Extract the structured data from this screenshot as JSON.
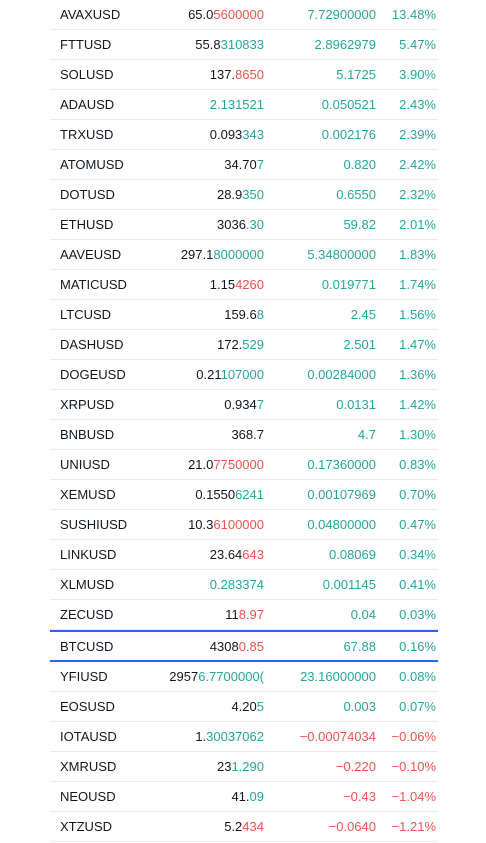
{
  "colors": {
    "up": "#26a69a",
    "down": "#ef5350",
    "text": "#131722",
    "highlight": "#2962ff"
  },
  "rows": [
    {
      "symbol": "AVAXUSD",
      "last_a": "65.0",
      "last_b": "5600000",
      "last_b_color": "down",
      "chg": "7.72900000",
      "chg_color": "up",
      "pct": "13.48%",
      "pct_color": "up"
    },
    {
      "symbol": "FTTUSD",
      "last_a": "55.8",
      "last_b": "310833",
      "last_b_color": "up",
      "chg": "2.8962979",
      "chg_color": "up",
      "pct": "5.47%",
      "pct_color": "up"
    },
    {
      "symbol": "SOLUSD",
      "last_a": "137.",
      "last_b": "8650",
      "last_b_color": "down",
      "chg": "5.1725",
      "chg_color": "up",
      "pct": "3.90%",
      "pct_color": "up"
    },
    {
      "symbol": "ADAUSD",
      "last_a": "",
      "last_b": "2.131521",
      "last_b_color": "up",
      "chg": "0.050521",
      "chg_color": "up",
      "pct": "2.43%",
      "pct_color": "up"
    },
    {
      "symbol": "TRXUSD",
      "last_a": "0.093",
      "last_b": "343",
      "last_b_color": "up",
      "chg": "0.002176",
      "chg_color": "up",
      "pct": "2.39%",
      "pct_color": "up"
    },
    {
      "symbol": "ATOMUSD",
      "last_a": "34.70",
      "last_b": "7",
      "last_b_color": "up",
      "chg": "0.820",
      "chg_color": "up",
      "pct": "2.42%",
      "pct_color": "up"
    },
    {
      "symbol": "DOTUSD",
      "last_a": "28.9",
      "last_b": "350",
      "last_b_color": "up",
      "chg": "0.6550",
      "chg_color": "up",
      "pct": "2.32%",
      "pct_color": "up"
    },
    {
      "symbol": "ETHUSD",
      "last_a": "3036",
      "last_b": ".30",
      "last_b_color": "up",
      "chg": "59.82",
      "chg_color": "up",
      "pct": "2.01%",
      "pct_color": "up"
    },
    {
      "symbol": "AAVEUSD",
      "last_a": "297.1",
      "last_b": "8000000",
      "last_b_color": "up",
      "chg": "5.34800000",
      "chg_color": "up",
      "pct": "1.83%",
      "pct_color": "up"
    },
    {
      "symbol": "MATICUSD",
      "last_a": "1.15",
      "last_b": "4260",
      "last_b_color": "down",
      "chg": "0.019771",
      "chg_color": "up",
      "pct": "1.74%",
      "pct_color": "up"
    },
    {
      "symbol": "LTCUSD",
      "last_a": "159.6",
      "last_b": "8",
      "last_b_color": "up",
      "chg": "2.45",
      "chg_color": "up",
      "pct": "1.56%",
      "pct_color": "up"
    },
    {
      "symbol": "DASHUSD",
      "last_a": "172.",
      "last_b": "529",
      "last_b_color": "up",
      "chg": "2.501",
      "chg_color": "up",
      "pct": "1.47%",
      "pct_color": "up"
    },
    {
      "symbol": "DOGEUSD",
      "last_a": "0.21",
      "last_b": "107000",
      "last_b_color": "up",
      "chg": "0.00284000",
      "chg_color": "up",
      "pct": "1.36%",
      "pct_color": "up"
    },
    {
      "symbol": "XRPUSD",
      "last_a": "0.934",
      "last_b": "7",
      "last_b_color": "up",
      "chg": "0.0131",
      "chg_color": "up",
      "pct": "1.42%",
      "pct_color": "up"
    },
    {
      "symbol": "BNBUSD",
      "last_a": "368.7",
      "last_b": "",
      "last_b_color": "neutral",
      "chg": "4.7",
      "chg_color": "up",
      "pct": "1.30%",
      "pct_color": "up"
    },
    {
      "symbol": "UNIUSD",
      "last_a": "21.0",
      "last_b": "7750000",
      "last_b_color": "down",
      "chg": "0.17360000",
      "chg_color": "up",
      "pct": "0.83%",
      "pct_color": "up"
    },
    {
      "symbol": "XEMUSD",
      "last_a": "0.1550",
      "last_b": "6241",
      "last_b_color": "up",
      "chg": "0.00107969",
      "chg_color": "up",
      "pct": "0.70%",
      "pct_color": "up"
    },
    {
      "symbol": "SUSHIUSD",
      "last_a": "10.3",
      "last_b": "6100000",
      "last_b_color": "down",
      "chg": "0.04800000",
      "chg_color": "up",
      "pct": "0.47%",
      "pct_color": "up"
    },
    {
      "symbol": "LINKUSD",
      "last_a": "23.64",
      "last_b": "643",
      "last_b_color": "down",
      "chg": "0.08069",
      "chg_color": "up",
      "pct": "0.34%",
      "pct_color": "up"
    },
    {
      "symbol": "XLMUSD",
      "last_a": "",
      "last_b": "0.283374",
      "last_b_color": "up",
      "chg": "0.001145",
      "chg_color": "up",
      "pct": "0.41%",
      "pct_color": "up"
    },
    {
      "symbol": "ZECUSD",
      "last_a": "11",
      "last_b": "8.97",
      "last_b_color": "down",
      "chg": "0.04",
      "chg_color": "up",
      "pct": "0.03%",
      "pct_color": "up"
    },
    {
      "symbol": "BTCUSD",
      "last_a": "4308",
      "last_b": "0.85",
      "last_b_color": "down",
      "chg": "67.88",
      "chg_color": "up",
      "pct": "0.16%",
      "pct_color": "up",
      "selected": true
    },
    {
      "symbol": "YFIUSD",
      "last_a": "2957",
      "last_b": "6.7700000(",
      "last_b_color": "up",
      "chg": "23.16000000",
      "chg_color": "up",
      "pct": "0.08%",
      "pct_color": "up"
    },
    {
      "symbol": "EOSUSD",
      "last_a": "4.20",
      "last_b": "5",
      "last_b_color": "up",
      "chg": "0.003",
      "chg_color": "up",
      "pct": "0.07%",
      "pct_color": "up"
    },
    {
      "symbol": "IOTAUSD",
      "last_a": "1.",
      "last_b": "30037062",
      "last_b_color": "up",
      "chg": "−0.00074034",
      "chg_color": "down",
      "pct": "−0.06%",
      "pct_color": "down"
    },
    {
      "symbol": "XMRUSD",
      "last_a": "23",
      "last_b": "1.290",
      "last_b_color": "up",
      "chg": "−0.220",
      "chg_color": "down",
      "pct": "−0.10%",
      "pct_color": "down"
    },
    {
      "symbol": "NEOUSD",
      "last_a": "41.",
      "last_b": "09",
      "last_b_color": "up",
      "chg": "−0.43",
      "chg_color": "down",
      "pct": "−1.04%",
      "pct_color": "down"
    },
    {
      "symbol": "XTZUSD",
      "last_a": "5.2",
      "last_b": "434",
      "last_b_color": "down",
      "chg": "−0.0640",
      "chg_color": "down",
      "pct": "−1.21%",
      "pct_color": "down"
    }
  ]
}
